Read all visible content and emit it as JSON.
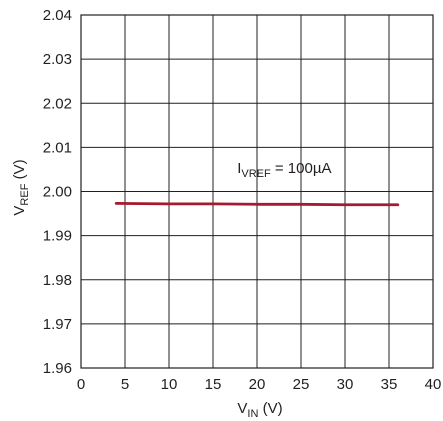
{
  "chart_data": {
    "type": "line",
    "x_axis": {
      "label_main": "V",
      "label_sub": "IN",
      "label_tail": " (V)",
      "ticks": [
        "0",
        "5",
        "10",
        "15",
        "20",
        "25",
        "30",
        "35",
        "40"
      ],
      "range": [
        0,
        40
      ]
    },
    "y_axis": {
      "label_main": "V",
      "label_sub": "REF",
      "label_tail": " (V)",
      "ticks": [
        "1.96",
        "1.97",
        "1.98",
        "1.99",
        "2.00",
        "2.01",
        "2.02",
        "2.03",
        "2.04"
      ],
      "range": [
        1.96,
        2.04
      ]
    },
    "grid": true,
    "series": [
      {
        "color": "#a6192e",
        "x": [
          4,
          10,
          15,
          20,
          25,
          30,
          36
        ],
        "y": [
          1.9973,
          1.9972,
          1.9972,
          1.9971,
          1.9971,
          1.997,
          1.997
        ]
      }
    ],
    "annotation": {
      "main": "I",
      "sub": "VREF",
      "tail": " = 100µA",
      "x": 19,
      "y": 2.0035
    }
  }
}
